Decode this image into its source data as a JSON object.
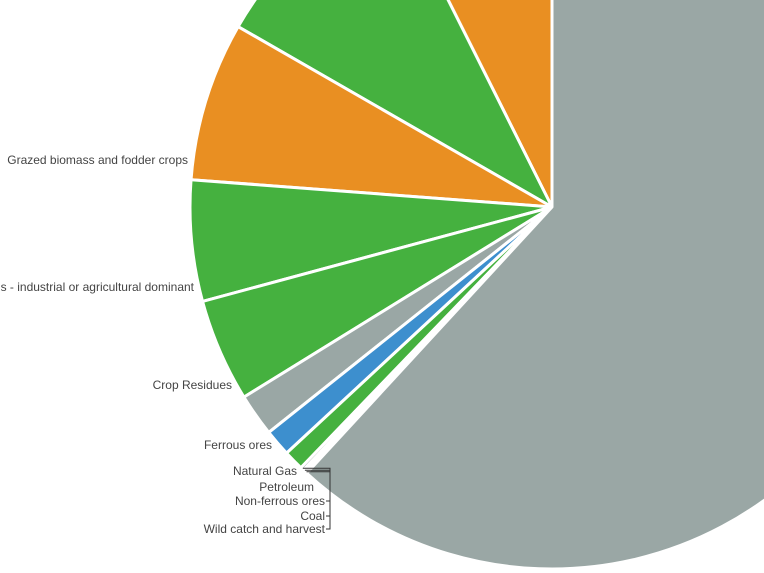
{
  "chart_data": {
    "type": "pie",
    "slices": [
      {
        "label": "",
        "value": 7.4,
        "color": "#e98f22"
      },
      {
        "label": "",
        "value": 9.3,
        "color": "#45b13f"
      },
      {
        "label": "Grazed biomass and fodder crops",
        "value": 7.1,
        "color": "#e98f22"
      },
      {
        "label": "s - industrial or agricultural dominant",
        "value": 5.4,
        "color": "#45b13f"
      },
      {
        "label": "Crop Residues",
        "value": 4.6,
        "color": "#45b13f"
      },
      {
        "label": "Ferrous ores",
        "value": 1.9,
        "color": "#9aa7a5"
      },
      {
        "label": "Natural Gas",
        "value": 1.2,
        "color": "#3d8fce"
      },
      {
        "label": "Petroleum",
        "value": 0.9,
        "color": "#45b13f"
      },
      {
        "label": "Non-ferrous ores",
        "value": 0.15,
        "color": "#9aa7a5"
      },
      {
        "label": "Coal",
        "value": 0.1,
        "color": "#3d8fce"
      },
      {
        "label": "Wild catch and harvest",
        "value": 0.1,
        "color": "#45b13f"
      },
      {
        "label": "",
        "value": 61.85,
        "color": "#9aa7a5"
      }
    ]
  }
}
